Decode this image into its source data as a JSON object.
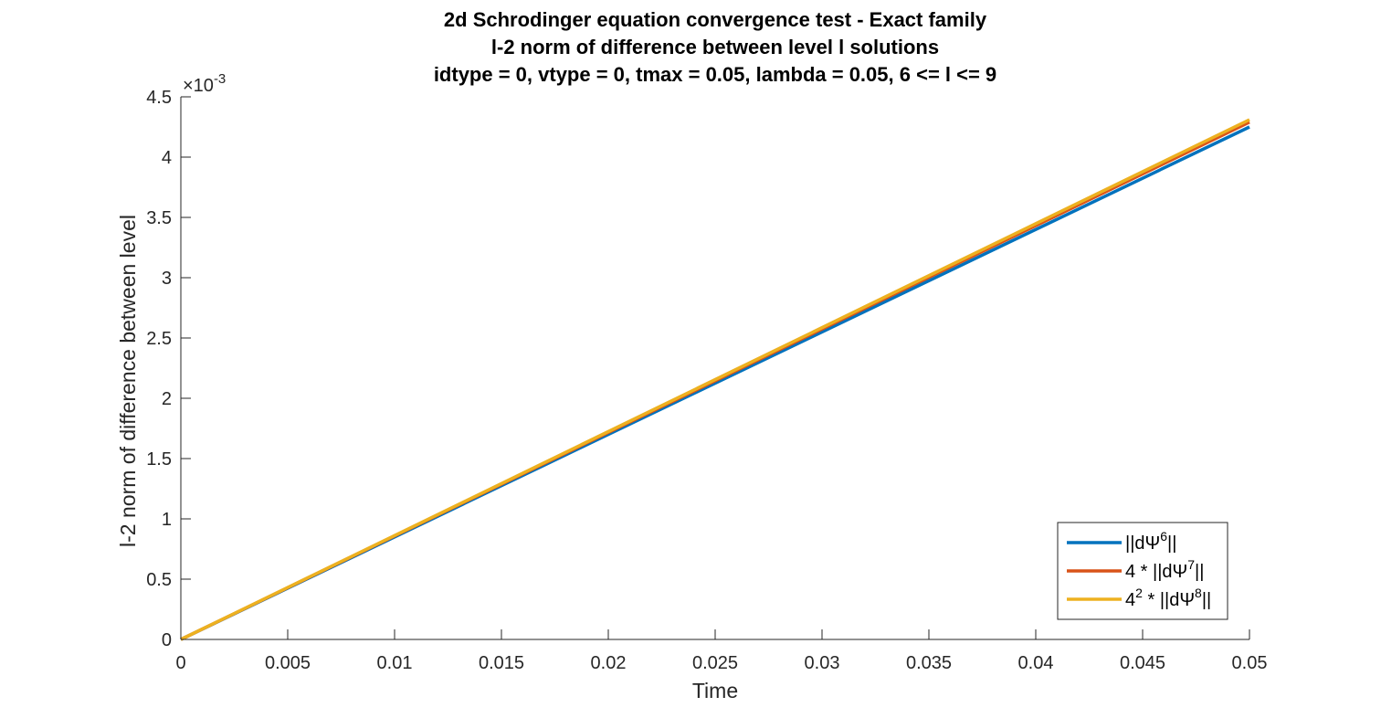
{
  "chart_data": {
    "type": "line",
    "title_lines": [
      "2d Schrodinger equation convergence test - Exact family",
      "l-2 norm of difference between level l solutions",
      "idtype = 0, vtype = 0, tmax = 0.05, lambda = 0.05, 6 <= l <= 9"
    ],
    "xlabel": "Time",
    "ylabel": "l-2 norm of difference between level",
    "xlim": [
      0,
      0.05
    ],
    "ylim": [
      0,
      0.0045
    ],
    "x_ticks": [
      0,
      0.005,
      0.01,
      0.015,
      0.02,
      0.025,
      0.03,
      0.035,
      0.04,
      0.045,
      0.05
    ],
    "x_tick_labels": [
      "0",
      "0.005",
      "0.01",
      "0.015",
      "0.02",
      "0.025",
      "0.03",
      "0.035",
      "0.04",
      "0.045",
      "0.05"
    ],
    "y_ticks": [
      0,
      0.0005,
      0.001,
      0.0015,
      0.002,
      0.0025,
      0.003,
      0.0035,
      0.004,
      0.0045
    ],
    "y_tick_labels": [
      "0",
      "0.5",
      "1",
      "1.5",
      "2",
      "2.5",
      "3",
      "3.5",
      "4",
      "4.5"
    ],
    "y_exponent_base": "×10",
    "y_exponent_power": "-3",
    "grid": false,
    "legend_position": "bottom-right",
    "series": [
      {
        "name": "||dΨ6||",
        "legend_parts": [
          {
            "text": "||dΨ",
            "sup": false
          },
          {
            "text": "6",
            "sup": true
          },
          {
            "text": "||",
            "sup": false
          }
        ],
        "color": "#0072BD",
        "x": [
          0,
          0.05
        ],
        "y": [
          0,
          0.00425
        ]
      },
      {
        "name": "4 * ||dΨ7||",
        "legend_parts": [
          {
            "text": "4 * ||dΨ",
            "sup": false
          },
          {
            "text": "7",
            "sup": true
          },
          {
            "text": "||",
            "sup": false
          }
        ],
        "color": "#D95319",
        "x": [
          0,
          0.05
        ],
        "y": [
          0,
          0.00429
        ]
      },
      {
        "name": "4^2 * ||dΨ8||",
        "legend_parts": [
          {
            "text": "4",
            "sup": false
          },
          {
            "text": "2",
            "sup": true
          },
          {
            "text": " * ||dΨ",
            "sup": false
          },
          {
            "text": "8",
            "sup": true
          },
          {
            "text": "||",
            "sup": false
          }
        ],
        "color": "#EDB120",
        "x": [
          0,
          0.05
        ],
        "y": [
          0,
          0.00431
        ]
      }
    ]
  }
}
